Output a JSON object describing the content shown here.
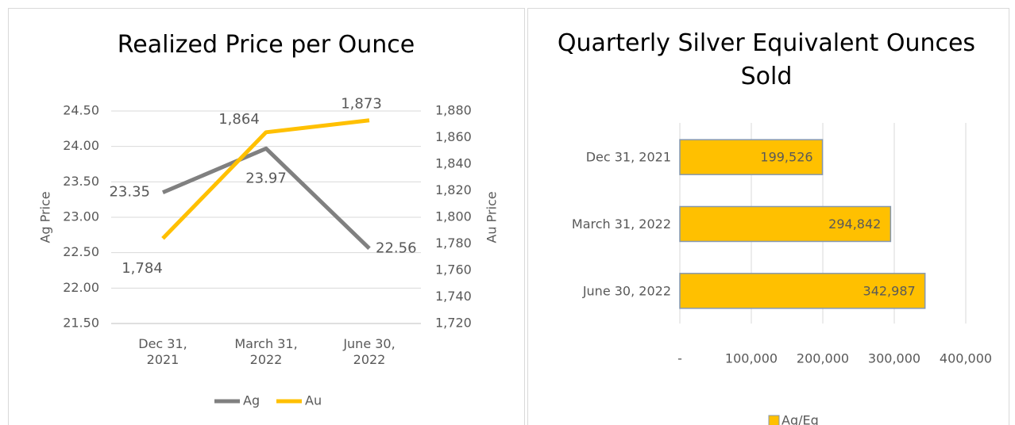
{
  "chart_data": [
    {
      "type": "line",
      "title": "Realized Price per Ounce",
      "categories": [
        "Dec 31, 2021",
        "March 31, 2022",
        "June 30, 2022"
      ],
      "series": [
        {
          "name": "Ag",
          "color": "#808080",
          "values": [
            23.35,
            23.97,
            22.56
          ]
        },
        {
          "name": "Au",
          "color": "#ffc000",
          "axis": "y2",
          "values": [
            1784,
            1864,
            1873
          ],
          "value_labels": [
            "1,784",
            "1,864",
            "1,873"
          ]
        }
      ],
      "ylabel": "Ag Price",
      "y2label": "Au Price",
      "ylim": [
        21.5,
        24.5
      ],
      "yticks": [
        {
          "value": 21.5,
          "label": "21.50"
        },
        {
          "value": 22,
          "label": "22.00"
        },
        {
          "value": 22.5,
          "label": "22.50"
        },
        {
          "value": 23,
          "label": "23.00"
        },
        {
          "value": 23.5,
          "label": "23.50"
        },
        {
          "value": 24,
          "label": "24.00"
        },
        {
          "value": 24.5,
          "label": "24.50"
        }
      ],
      "y2lim": [
        1720,
        1880
      ],
      "y2ticks": [
        {
          "value": 1720,
          "label": "1,720"
        },
        {
          "value": 1740,
          "label": "1,740"
        },
        {
          "value": 1760,
          "label": "1,760"
        },
        {
          "value": 1780,
          "label": "1,780"
        },
        {
          "value": 1800,
          "label": "1,800"
        },
        {
          "value": 1820,
          "label": "1,820"
        },
        {
          "value": 1840,
          "label": "1,840"
        },
        {
          "value": 1860,
          "label": "1,860"
        },
        {
          "value": 1880,
          "label": "1,880"
        }
      ],
      "grid": true,
      "legend": "bottom"
    },
    {
      "type": "barh",
      "title": "Quarterly Silver Equivalent Ounces Sold",
      "categories": [
        "Dec 31, 2021",
        "March 31, 2022",
        "June 30, 2022"
      ],
      "series": [
        {
          "name": "Ag/Eq",
          "color": "#ffc000",
          "values": [
            199526,
            294842,
            342987
          ],
          "value_labels": [
            "199,526",
            "294,842",
            "342,987"
          ]
        }
      ],
      "xlim": [
        0,
        400000
      ],
      "xticks": [
        {
          "value": 0,
          "label": "-"
        },
        {
          "value": 100000,
          "label": "100,000"
        },
        {
          "value": 200000,
          "label": "200,000"
        },
        {
          "value": 300000,
          "label": "300,000"
        },
        {
          "value": 400000,
          "label": "400,000"
        }
      ],
      "grid": true,
      "legend": "bottom"
    }
  ]
}
